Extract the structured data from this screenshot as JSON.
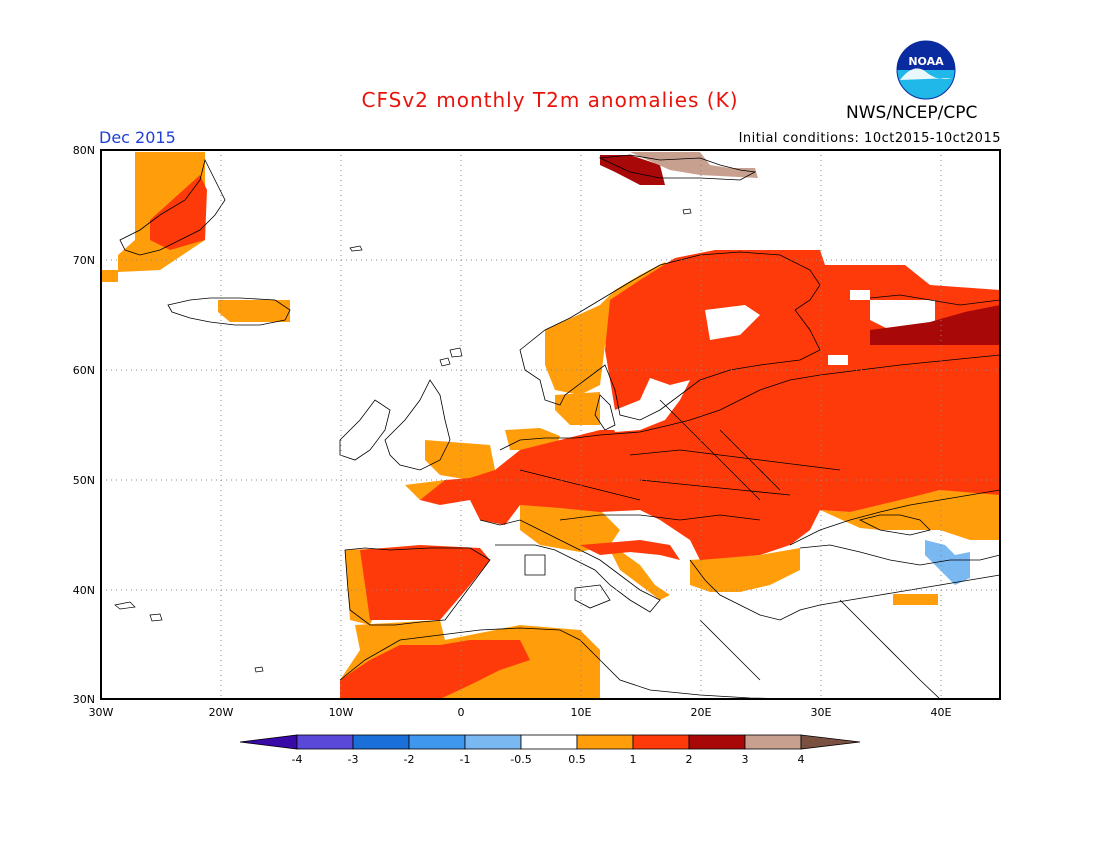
{
  "header": {
    "title": "CFSv2 monthly T2m anomalies (K)",
    "org": "NWS/NCEP/CPC",
    "logo_text": "NOAA",
    "period": "Dec 2015",
    "initial_conditions": "Initial conditions: 10ct2015-10ct2015"
  },
  "map": {
    "lat_labels": [
      "80N",
      "70N",
      "60N",
      "50N",
      "40N",
      "30N"
    ],
    "lon_labels": [
      "30W",
      "20W",
      "10W",
      "0",
      "10E",
      "20E",
      "30E",
      "40E"
    ],
    "grid": "dotted"
  },
  "legend": {
    "ticks": [
      "-4",
      "-3",
      "-2",
      "-1",
      "-0.5",
      "0.5",
      "1",
      "2",
      "3",
      "4"
    ],
    "colors": [
      "#3a0aa8",
      "#5a48d8",
      "#1a6fd8",
      "#3f97ee",
      "#7ab8f2",
      "#ffffff",
      "#ff9e0a",
      "#ff3a0a",
      "#a80808",
      "#c8a090",
      "#7a5040"
    ]
  }
}
